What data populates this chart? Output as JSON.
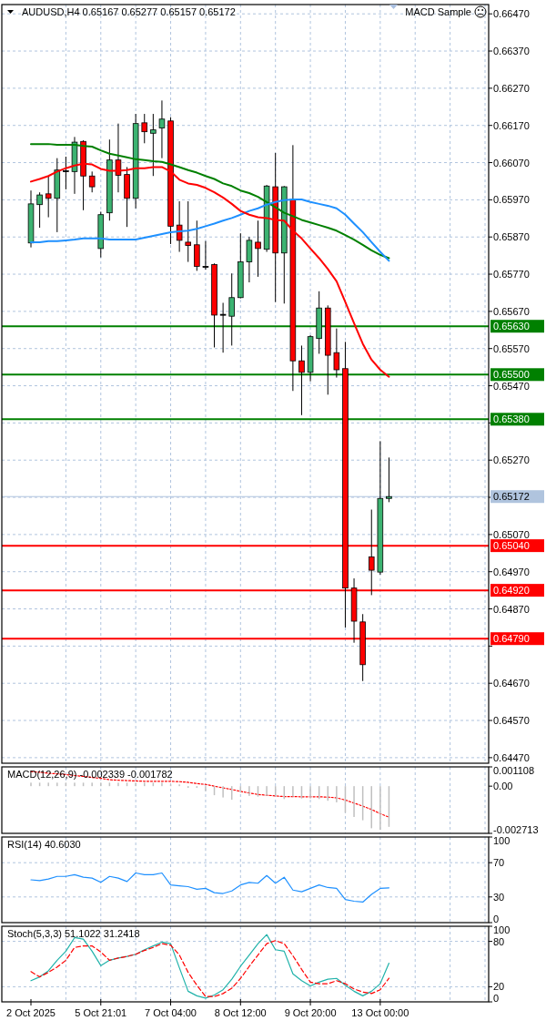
{
  "chart_data": [
    {
      "type": "candlestick",
      "title": "AUDUSD,H4 0.65167 0.65277 0.65157 0.65172",
      "annotations": [
        "MACD Sample"
      ],
      "categories": [
        null,
        null,
        null,
        null,
        null,
        null,
        null,
        null,
        null,
        null,
        null,
        null,
        null,
        null,
        null,
        null,
        null,
        null,
        null,
        null,
        null,
        null,
        null,
        null,
        null,
        null,
        null,
        null,
        null,
        null,
        null,
        null,
        null,
        null,
        null,
        null,
        null,
        null,
        null,
        null,
        null,
        null,
        null,
        null,
        null,
        null,
        null,
        null,
        null,
        null,
        null,
        null,
        null
      ],
      "ohlc": [
        [
          0.65854,
          0.65995,
          0.65842,
          0.65959
        ],
        [
          0.65957,
          0.6599,
          0.65895,
          0.65983
        ],
        [
          0.65986,
          0.66034,
          0.65923,
          0.65974
        ],
        [
          0.65974,
          0.66082,
          0.65883,
          0.6605
        ],
        [
          0.66048,
          0.66086,
          0.65998,
          0.66048
        ],
        [
          0.66046,
          0.66139,
          0.65986,
          0.66125
        ],
        [
          0.66127,
          0.6613,
          0.65942,
          0.66034
        ],
        [
          0.66034,
          0.66046,
          0.6599,
          0.66005
        ],
        [
          0.65839,
          0.65938,
          0.65815,
          0.6593
        ],
        [
          0.65935,
          0.66132,
          0.65914,
          0.66077
        ],
        [
          0.66077,
          0.66175,
          0.6599,
          0.66036
        ],
        [
          0.66038,
          0.66058,
          0.65897,
          0.65974
        ],
        [
          0.65974,
          0.66201,
          0.65947,
          0.66175
        ],
        [
          0.66177,
          0.66201,
          0.66122,
          0.66153
        ],
        [
          0.66149,
          0.66201,
          0.66034,
          0.66158
        ],
        [
          0.66163,
          0.66237,
          0.66082,
          0.66187
        ],
        [
          0.66182,
          0.66192,
          0.65851,
          0.65899
        ],
        [
          0.65902,
          0.65966,
          0.6583,
          0.65861
        ],
        [
          0.65856,
          0.65966,
          0.65803,
          0.65847
        ],
        [
          0.65849,
          0.65914,
          0.65779,
          0.65791
        ],
        [
          0.65791,
          0.65859,
          0.65782,
          0.65791
        ],
        [
          0.65796,
          0.65799,
          0.65573,
          0.6566
        ],
        [
          0.65662,
          0.65693,
          0.65559,
          0.65662
        ],
        [
          0.65657,
          0.65772,
          0.65578,
          0.65707
        ],
        [
          0.65707,
          0.6588,
          0.65705,
          0.65803
        ],
        [
          0.65803,
          0.6587,
          0.65748,
          0.65861
        ],
        [
          0.65856,
          0.65914,
          0.65763,
          0.65839
        ],
        [
          0.65837,
          0.6601,
          0.6583,
          0.66007
        ],
        [
          0.66005,
          0.66096,
          0.65695,
          0.65827
        ],
        [
          0.65827,
          0.66007,
          0.65691,
          0.66005
        ],
        [
          0.65971,
          0.66117,
          0.65456,
          0.65537
        ],
        [
          0.65537,
          0.65578,
          0.65391,
          0.65506
        ],
        [
          0.65506,
          0.65606,
          0.65482,
          0.65602
        ],
        [
          0.65597,
          0.65724,
          0.65556,
          0.65679
        ],
        [
          0.65679,
          0.65686,
          0.65446,
          0.65552
        ],
        [
          0.65559,
          0.65624,
          0.65492,
          0.65513
        ],
        [
          0.65516,
          0.65588,
          0.6482,
          0.64926
        ],
        [
          0.64926,
          0.64952,
          0.64779,
          0.64837
        ],
        [
          0.64835,
          0.64856,
          0.64676,
          0.6472
        ],
        [
          0.6501,
          0.65137,
          0.64907,
          0.64974
        ],
        [
          0.64969,
          0.65321,
          0.64962,
          0.65167
        ],
        [
          0.65167,
          0.65277,
          0.65157,
          0.65172
        ],
        null,
        null,
        null,
        null,
        null,
        null,
        null,
        null,
        null,
        null,
        null
      ],
      "colors": [
        "#3cb371",
        "#3cb371",
        "#ff0000",
        "#3cb371",
        "#000000",
        "#3cb371",
        "#ff0000",
        "#ff0000",
        "#3cb371",
        "#3cb371",
        "#ff0000",
        "#ff0000",
        "#3cb371",
        "#ff0000",
        "#3cb371",
        "#3cb371",
        "#ff0000",
        "#ff0000",
        "#ff0000",
        "#ff0000",
        "#000000",
        "#ff0000",
        "#000000",
        "#3cb371",
        "#3cb371",
        "#3cb371",
        "#ff0000",
        "#3cb371",
        "#ff0000",
        "#3cb371",
        "#ff0000",
        "#ff0000",
        "#3cb371",
        "#3cb371",
        "#ff0000",
        "#ff0000",
        "#ff0000",
        "#ff0000",
        "#ff0000",
        "#ff0000",
        "#3cb371",
        "#3cb371",
        null,
        null,
        null,
        null,
        null,
        null,
        null,
        null,
        null,
        null,
        null
      ],
      "series": [
        {
          "type": "line",
          "color": "#008000",
          "values": [
            0.6612,
            0.6612,
            0.6612,
            0.66118,
            0.66118,
            0.66118,
            0.66115,
            0.66113,
            0.66103,
            0.66094,
            0.66089,
            0.66084,
            0.66079,
            0.66077,
            0.66074,
            0.66072,
            0.66065,
            0.66058,
            0.6605,
            0.66043,
            0.66034,
            0.66026,
            0.66014,
            0.66007,
            0.65995,
            0.65988,
            0.65978,
            0.65964,
            0.6595,
            0.65935,
            0.65926,
            0.65916,
            0.65909,
            0.65902,
            0.65895,
            0.65887,
            0.65875,
            0.65863,
            0.65849,
            0.65834,
            0.65822,
            0.65813,
            null,
            null,
            null,
            null,
            null,
            null,
            null,
            null,
            null,
            null,
            null
          ]
        },
        {
          "type": "line",
          "color": "#1e90ff",
          "values": [
            0.65856,
            0.65856,
            0.65859,
            0.65859,
            0.65861,
            0.65863,
            0.65866,
            0.65866,
            0.65866,
            0.65863,
            0.65863,
            0.65863,
            0.65863,
            0.65868,
            0.65873,
            0.65878,
            0.65883,
            0.65885,
            0.65887,
            0.65892,
            0.65899,
            0.65906,
            0.65914,
            0.65921,
            0.6593,
            0.6594,
            0.65947,
            0.65957,
            0.65964,
            0.65969,
            0.65971,
            0.65971,
            0.65964,
            0.65959,
            0.65954,
            0.65947,
            0.6593,
            0.65906,
            0.65883,
            0.65856,
            0.6583,
            0.65806,
            null,
            null,
            null,
            null,
            null,
            null,
            null,
            null,
            null,
            null,
            null
          ]
        },
        {
          "type": "line",
          "color": "#ff0000",
          "values": [
            0.66019,
            0.66026,
            0.66034,
            0.66046,
            0.66055,
            0.66062,
            0.66067,
            0.66065,
            0.66053,
            0.66048,
            0.66048,
            0.6605,
            0.66055,
            0.66055,
            0.66058,
            0.66058,
            0.66046,
            0.66024,
            0.66014,
            0.6601,
            0.66002,
            0.6599,
            0.65976,
            0.65959,
            0.6594,
            0.6593,
            0.65923,
            0.65921,
            0.65916,
            0.65914,
            0.65887,
            0.65866,
            0.65839,
            0.65813,
            0.65784,
            0.65751,
            0.65695,
            0.65638,
            0.65583,
            0.6554,
            0.65513,
            0.65494,
            null,
            null,
            null,
            null,
            null,
            null,
            null,
            null,
            null,
            null,
            null
          ]
        }
      ],
      "ylim": [
        0.64455,
        0.66495
      ],
      "yticks": [
        {
          "value": 0.6647,
          "label": "0.66470"
        },
        {
          "value": 0.6637,
          "label": "0.66370"
        },
        {
          "value": 0.6627,
          "label": "0.66270"
        },
        {
          "value": 0.6617,
          "label": "0.66170"
        },
        {
          "value": 0.6607,
          "label": "0.66070"
        },
        {
          "value": 0.6597,
          "label": "0.65970"
        },
        {
          "value": 0.6587,
          "label": "0.65870"
        },
        {
          "value": 0.6577,
          "label": "0.65770"
        },
        {
          "value": 0.6567,
          "label": "0.65670"
        },
        {
          "value": 0.6557,
          "label": "0.65570"
        },
        {
          "value": 0.6547,
          "label": "0.65470"
        },
        {
          "value": 0.6537,
          "label": null
        },
        {
          "value": 0.6527,
          "label": "0.65270"
        },
        {
          "value": 0.6517,
          "label": null
        },
        {
          "value": 0.6507,
          "label": "0.65070"
        },
        {
          "value": 0.6497,
          "label": "0.64970"
        },
        {
          "value": 0.6487,
          "label": "0.64870"
        },
        {
          "value": 0.6477,
          "label": null
        },
        {
          "value": 0.6467,
          "label": "0.64670"
        },
        {
          "value": 0.6457,
          "label": "0.64570"
        },
        {
          "value": 0.6447,
          "label": "0.64470"
        }
      ],
      "ref_lines": [
        {
          "axis": "y",
          "value": 0.6563,
          "label": "0.65630",
          "color": "#008000"
        },
        {
          "axis": "y",
          "value": 0.655,
          "label": "0.65500",
          "color": "#008000"
        },
        {
          "axis": "y",
          "value": 0.6538,
          "label": "0.65380",
          "color": "#008000"
        },
        {
          "axis": "y",
          "value": 0.65172,
          "label": "0.65172",
          "color": "#b0c4de"
        },
        {
          "axis": "y",
          "value": 0.6504,
          "label": "0.65040",
          "color": "#ff0000"
        },
        {
          "axis": "y",
          "value": 0.6492,
          "label": "0.64920",
          "color": "#ff0000"
        },
        {
          "axis": "y",
          "value": 0.6479,
          "label": "0.64790",
          "color": "#ff0000"
        }
      ],
      "grid": true,
      "tick_labels": "y"
    },
    {
      "type": "bar",
      "title": "MACD(12,26,9) -0.002339 -0.001782",
      "categories": [
        null,
        null,
        null,
        null,
        null,
        null,
        null,
        null,
        null,
        null,
        null,
        null,
        null,
        null,
        null,
        null,
        null,
        null,
        null,
        null,
        null,
        null,
        null,
        null,
        null,
        null,
        null,
        null,
        null,
        null,
        null,
        null,
        null,
        null,
        null,
        null,
        null,
        null,
        null,
        null,
        null,
        null,
        null,
        null,
        null,
        null,
        null,
        null,
        null,
        null,
        null,
        null,
        null
      ],
      "series": [
        {
          "type": "bar",
          "color": "#c0c0c0",
          "values": [
            0.0002,
            0.0002,
            0.0002,
            0.0002,
            0.0002,
            0.0002,
            0.0002,
            0.0002,
            0.0002,
            0.0002,
            0.0002,
            0.0002,
            0.0002,
            0.0002,
            0.0002,
            0.0002,
            0.0001,
            0.0001,
            -0.0001,
            -0.0001,
            -0.00028,
            -0.00052,
            -0.00065,
            -0.00078,
            -0.00037,
            -0.00056,
            -0.0006,
            -0.00056,
            -0.00056,
            -0.00074,
            -0.0006,
            -0.00071,
            -0.00071,
            -0.00074,
            -0.00084,
            -0.00093,
            -0.00153,
            -0.00177,
            -0.00196,
            -0.00242,
            -0.00251,
            -0.002339,
            null,
            null,
            null,
            null,
            null,
            null,
            null,
            null,
            null,
            null,
            null
          ]
        },
        {
          "type": "line",
          "color": "#ff0000",
          "line_style": "dotted",
          "values": [
            0.00084,
            0.0008,
            0.00074,
            0.00071,
            0.00067,
            0.00061,
            0.00056,
            0.0005,
            0.00045,
            0.00037,
            0.00034,
            0.00032,
            0.0003,
            0.00028,
            0.00028,
            0.00028,
            0.00028,
            0.00026,
            0.00022,
            0.00015,
            0.0001,
            0,
            -0.0001,
            -0.00019,
            -0.0003,
            -0.00039,
            -0.00048,
            -0.00052,
            -0.00056,
            -0.0006,
            -0.0006,
            -0.00061,
            -0.00061,
            -0.00061,
            -0.00063,
            -0.00067,
            -0.0008,
            -0.00097,
            -0.00115,
            -0.00134,
            -0.00158,
            -0.001782,
            null,
            null,
            null,
            null,
            null,
            null,
            null,
            null,
            null,
            null,
            null
          ]
        }
      ],
      "ylim": [
        -0.002713,
        0.001108
      ],
      "yticks": [
        0.001108,
        {
          "value": 0,
          "label": "0.00"
        },
        -0.002713
      ],
      "grid": "x",
      "tick_labels": "y"
    },
    {
      "type": "line",
      "title": "RSI(14) 40.6030",
      "categories": [
        null,
        null,
        null,
        null,
        null,
        null,
        null,
        null,
        null,
        null,
        null,
        null,
        null,
        null,
        null,
        null,
        null,
        null,
        null,
        null,
        null,
        null,
        null,
        null,
        null,
        null,
        null,
        null,
        null,
        null,
        null,
        null,
        null,
        null,
        null,
        null,
        null,
        null,
        null,
        null,
        null,
        null,
        null,
        null,
        null,
        null,
        null,
        null,
        null,
        null,
        null,
        null,
        null
      ],
      "series": [
        {
          "color": "#1e90ff",
          "values": [
            50,
            49,
            51,
            54,
            54,
            56,
            53,
            52,
            47,
            54,
            52,
            48,
            58,
            56,
            56,
            58,
            44,
            43,
            42,
            39,
            40,
            35,
            34,
            37,
            44,
            47,
            46,
            55,
            46,
            53,
            38,
            36,
            40,
            44,
            41,
            40,
            27,
            25,
            24,
            33,
            40,
            40.6,
            null,
            null,
            null,
            null,
            null,
            null,
            null,
            null,
            null,
            null,
            null
          ]
        }
      ],
      "ylim": [
        0,
        100
      ],
      "yticks": [
        100,
        70,
        30,
        0
      ],
      "grid": true,
      "tick_labels": "y"
    },
    {
      "type": "line",
      "title": "Stoch(5,3,3) 51.1022 31.2418",
      "categories": [
        "2 Oct 2025",
        null,
        null,
        null,
        null,
        null,
        null,
        null,
        "5 Oct 21:01",
        null,
        null,
        null,
        null,
        null,
        null,
        null,
        "7 Oct 04:00",
        null,
        null,
        null,
        null,
        null,
        null,
        null,
        "8 Oct 12:00",
        null,
        null,
        null,
        null,
        null,
        null,
        null,
        "9 Oct 20:00",
        null,
        null,
        null,
        null,
        null,
        null,
        null,
        "13 Oct 00:00",
        null,
        null,
        null,
        null,
        null,
        null,
        null,
        null,
        null,
        null,
        null,
        null
      ],
      "series": [
        {
          "color": "#20b2aa",
          "values": [
            28,
            33,
            41,
            55,
            67,
            85,
            83,
            67,
            48,
            55,
            58,
            60,
            63,
            69,
            74,
            79,
            77,
            45,
            14,
            8,
            5,
            9,
            16,
            30,
            47,
            62,
            77,
            89,
            69,
            67,
            37,
            28,
            21,
            26,
            30,
            31,
            22,
            14,
            8,
            14,
            24,
            51.1022,
            null,
            null,
            null,
            null,
            null,
            null,
            null,
            null,
            null,
            null,
            null
          ]
        },
        {
          "color": "#ff0000",
          "line_style": "dashed",
          "values": [
            40,
            33,
            39,
            46,
            55,
            72,
            74,
            74,
            66,
            55,
            58,
            60,
            63,
            68,
            72,
            77,
            75,
            62,
            39,
            22,
            7,
            7,
            11,
            18,
            31,
            47,
            62,
            77,
            81,
            77,
            61,
            43,
            26,
            24,
            24,
            28,
            24,
            17,
            13,
            11,
            16,
            31.2418,
            null,
            null,
            null,
            null,
            null,
            null,
            null,
            null,
            null,
            null,
            null
          ]
        }
      ],
      "ylim": [
        0,
        100
      ],
      "yticks": [
        100,
        80,
        20,
        0
      ],
      "grid": true
    }
  ]
}
